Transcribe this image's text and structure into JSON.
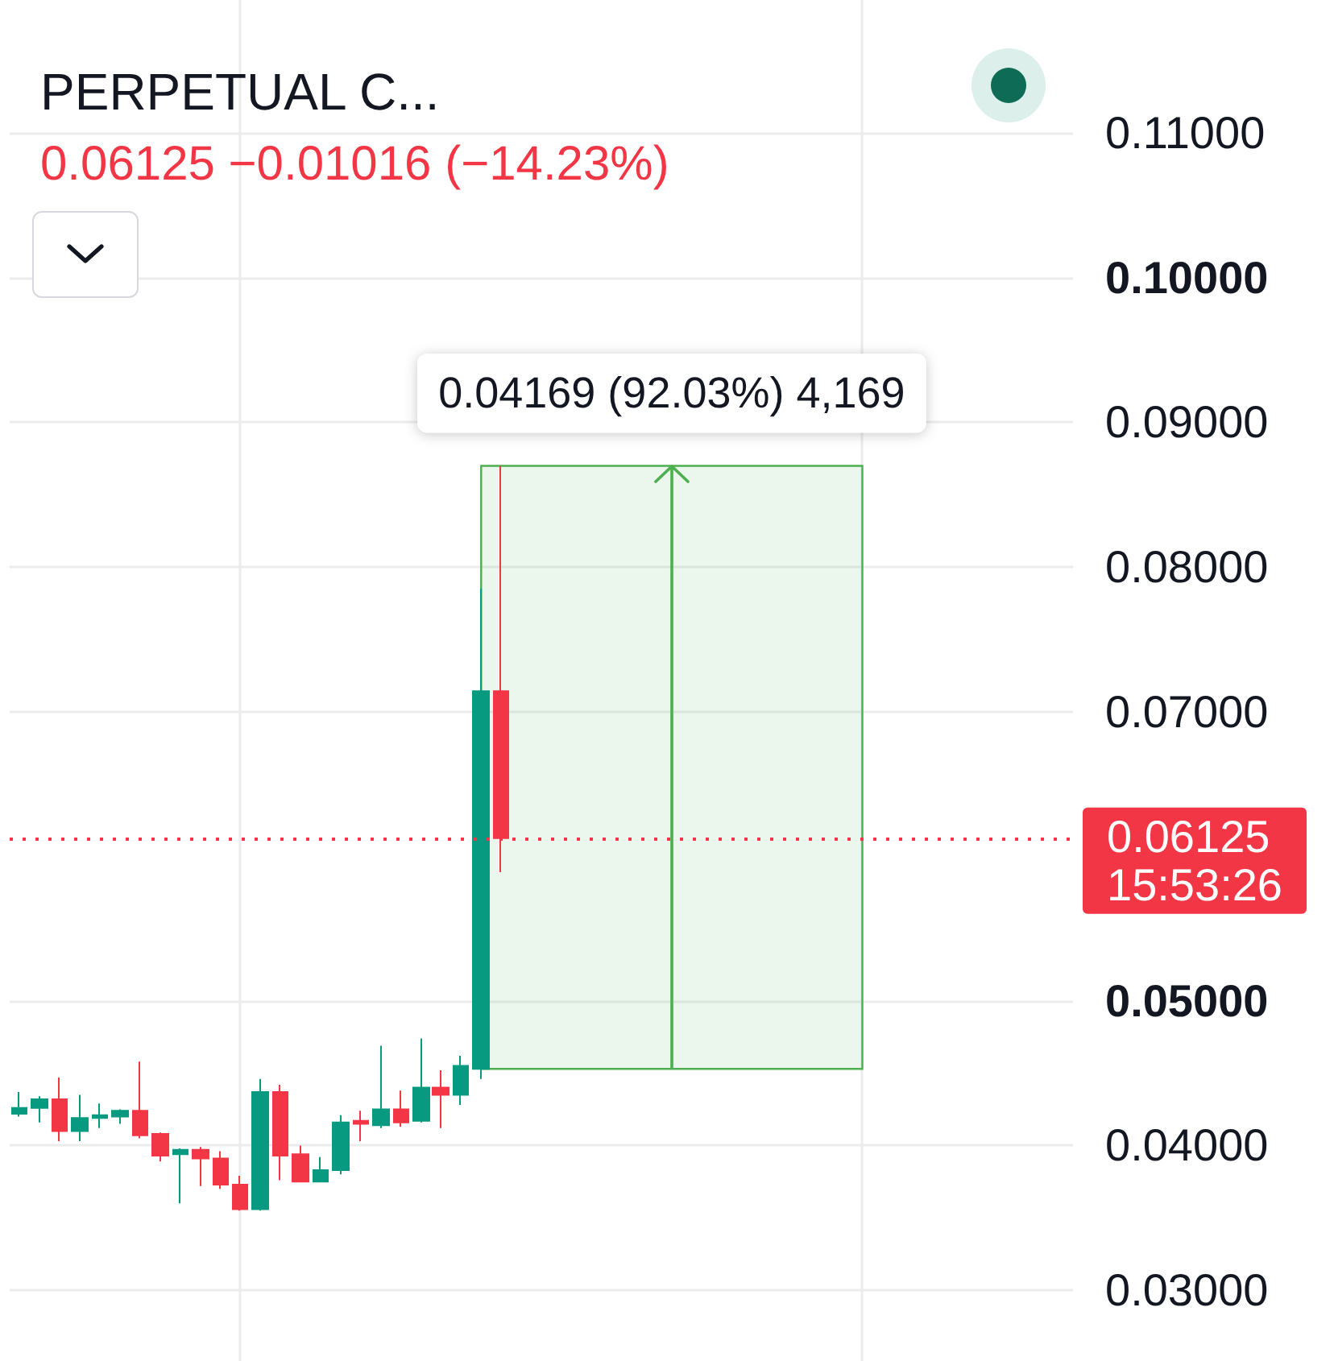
{
  "chart_data": {
    "type": "candlestick",
    "title": "PERPETUAL C...",
    "subtitle": "0.06125 −0.01016 (−14.23%)",
    "categories": [
      null,
      null,
      null,
      null,
      null,
      null,
      null,
      null,
      null,
      null,
      null,
      null,
      null,
      null,
      null,
      null,
      null,
      null,
      null,
      null,
      null,
      null,
      null,
      null,
      null,
      null,
      null,
      null,
      null,
      null,
      null,
      null,
      null,
      null,
      null,
      null,
      null,
      null,
      null,
      null,
      null,
      null,
      null,
      null,
      null,
      null,
      null,
      null,
      null,
      null,
      null,
      null,
      null
    ],
    "ohlc": [
      [
        0.0422,
        0.0437,
        0.042,
        0.0426
      ],
      [
        0.0426,
        0.0434,
        0.0416,
        0.0432
      ],
      [
        0.0432,
        0.0447,
        0.0403,
        0.041
      ],
      [
        0.041,
        0.0435,
        0.0403,
        0.0419
      ],
      [
        0.0419,
        0.0429,
        0.0412,
        0.0421
      ],
      [
        0.042,
        0.0425,
        0.0415,
        0.0424
      ],
      [
        0.0424,
        0.0458,
        0.0405,
        0.0407
      ],
      [
        0.0408,
        0.0409,
        0.0389,
        0.0393
      ],
      [
        0.0394,
        0.0398,
        0.036,
        0.0397
      ],
      [
        0.0397,
        0.0399,
        0.0372,
        0.0391
      ],
      [
        0.0391,
        0.0396,
        0.037,
        0.0373
      ],
      [
        0.0373,
        0.0379,
        0.0355,
        0.0356
      ],
      [
        0.0356,
        0.0446,
        0.0355,
        0.0437
      ],
      [
        0.0437,
        0.0442,
        0.0376,
        0.0393
      ],
      [
        0.0394,
        0.04,
        0.0375,
        0.0375
      ],
      [
        0.0375,
        0.0392,
        0.0375,
        0.0383
      ],
      [
        0.0383,
        0.0421,
        0.038,
        0.0416
      ],
      [
        0.0417,
        0.0424,
        0.0403,
        0.0415
      ],
      [
        0.0414,
        0.0469,
        0.0412,
        0.0425
      ],
      [
        0.0425,
        0.0438,
        0.0413,
        0.0416
      ],
      [
        0.0417,
        0.0474,
        0.0416,
        0.044
      ],
      [
        0.044,
        0.0452,
        0.0412,
        0.0435
      ],
      [
        0.0435,
        0.0462,
        0.0428,
        0.0455
      ],
      [
        0.0453,
        0.0785,
        0.0446,
        0.07141
      ],
      [
        0.07141,
        0.08699,
        0.0589,
        0.06125
      ],
      null,
      null,
      null,
      null,
      null,
      null,
      null,
      null,
      null,
      null,
      null,
      null,
      null,
      null,
      null,
      null,
      null,
      null,
      null,
      null,
      null,
      null,
      null,
      null,
      null,
      null,
      null,
      null
    ],
    "colors": [
      "#089981",
      "#089981",
      "#f23645",
      "#089981",
      "#089981",
      "#089981",
      "#f23645",
      "#f23645",
      "#089981",
      "#f23645",
      "#f23645",
      "#f23645",
      "#089981",
      "#f23645",
      "#f23645",
      "#089981",
      "#089981",
      "#f23645",
      "#089981",
      "#f23645",
      "#089981",
      "#f23645",
      "#089981",
      "#089981",
      "#f23645",
      null,
      null,
      null,
      null,
      null,
      null,
      null,
      null,
      null,
      null,
      null,
      null,
      null,
      null,
      null,
      null,
      null,
      null,
      null,
      null,
      null,
      null,
      null,
      null,
      null,
      null,
      null,
      null
    ],
    "ylim": [
      0.0251,
      0.1192
    ],
    "yticks": [
      {
        "value": 0.03,
        "label": "0.03000"
      },
      {
        "value": 0.04,
        "label": "0.04000"
      },
      {
        "value": 0.05,
        "label": "0.05000"
      },
      {
        "value": 0.07,
        "label": "0.07000"
      },
      {
        "value": 0.08,
        "label": "0.08000"
      },
      {
        "value": 0.09,
        "label": "0.09000"
      },
      {
        "value": 0.1,
        "label": "0.10000"
      },
      {
        "value": 0.11,
        "label": "0.11000"
      }
    ],
    "ref_lines": [
      {
        "axis": "y",
        "value": 0.06125,
        "label": "0.06125\n15:53:26",
        "color": "#f23645",
        "line_style": "dotted"
      }
    ],
    "bands": [
      {
        "axis": "y",
        "from": 0.0453,
        "to": 0.08699,
        "label": "0.04169 (92.03%) 4,169",
        "color": "#4caf50"
      }
    ],
    "grid": true,
    "tick_labels": "y"
  }
}
